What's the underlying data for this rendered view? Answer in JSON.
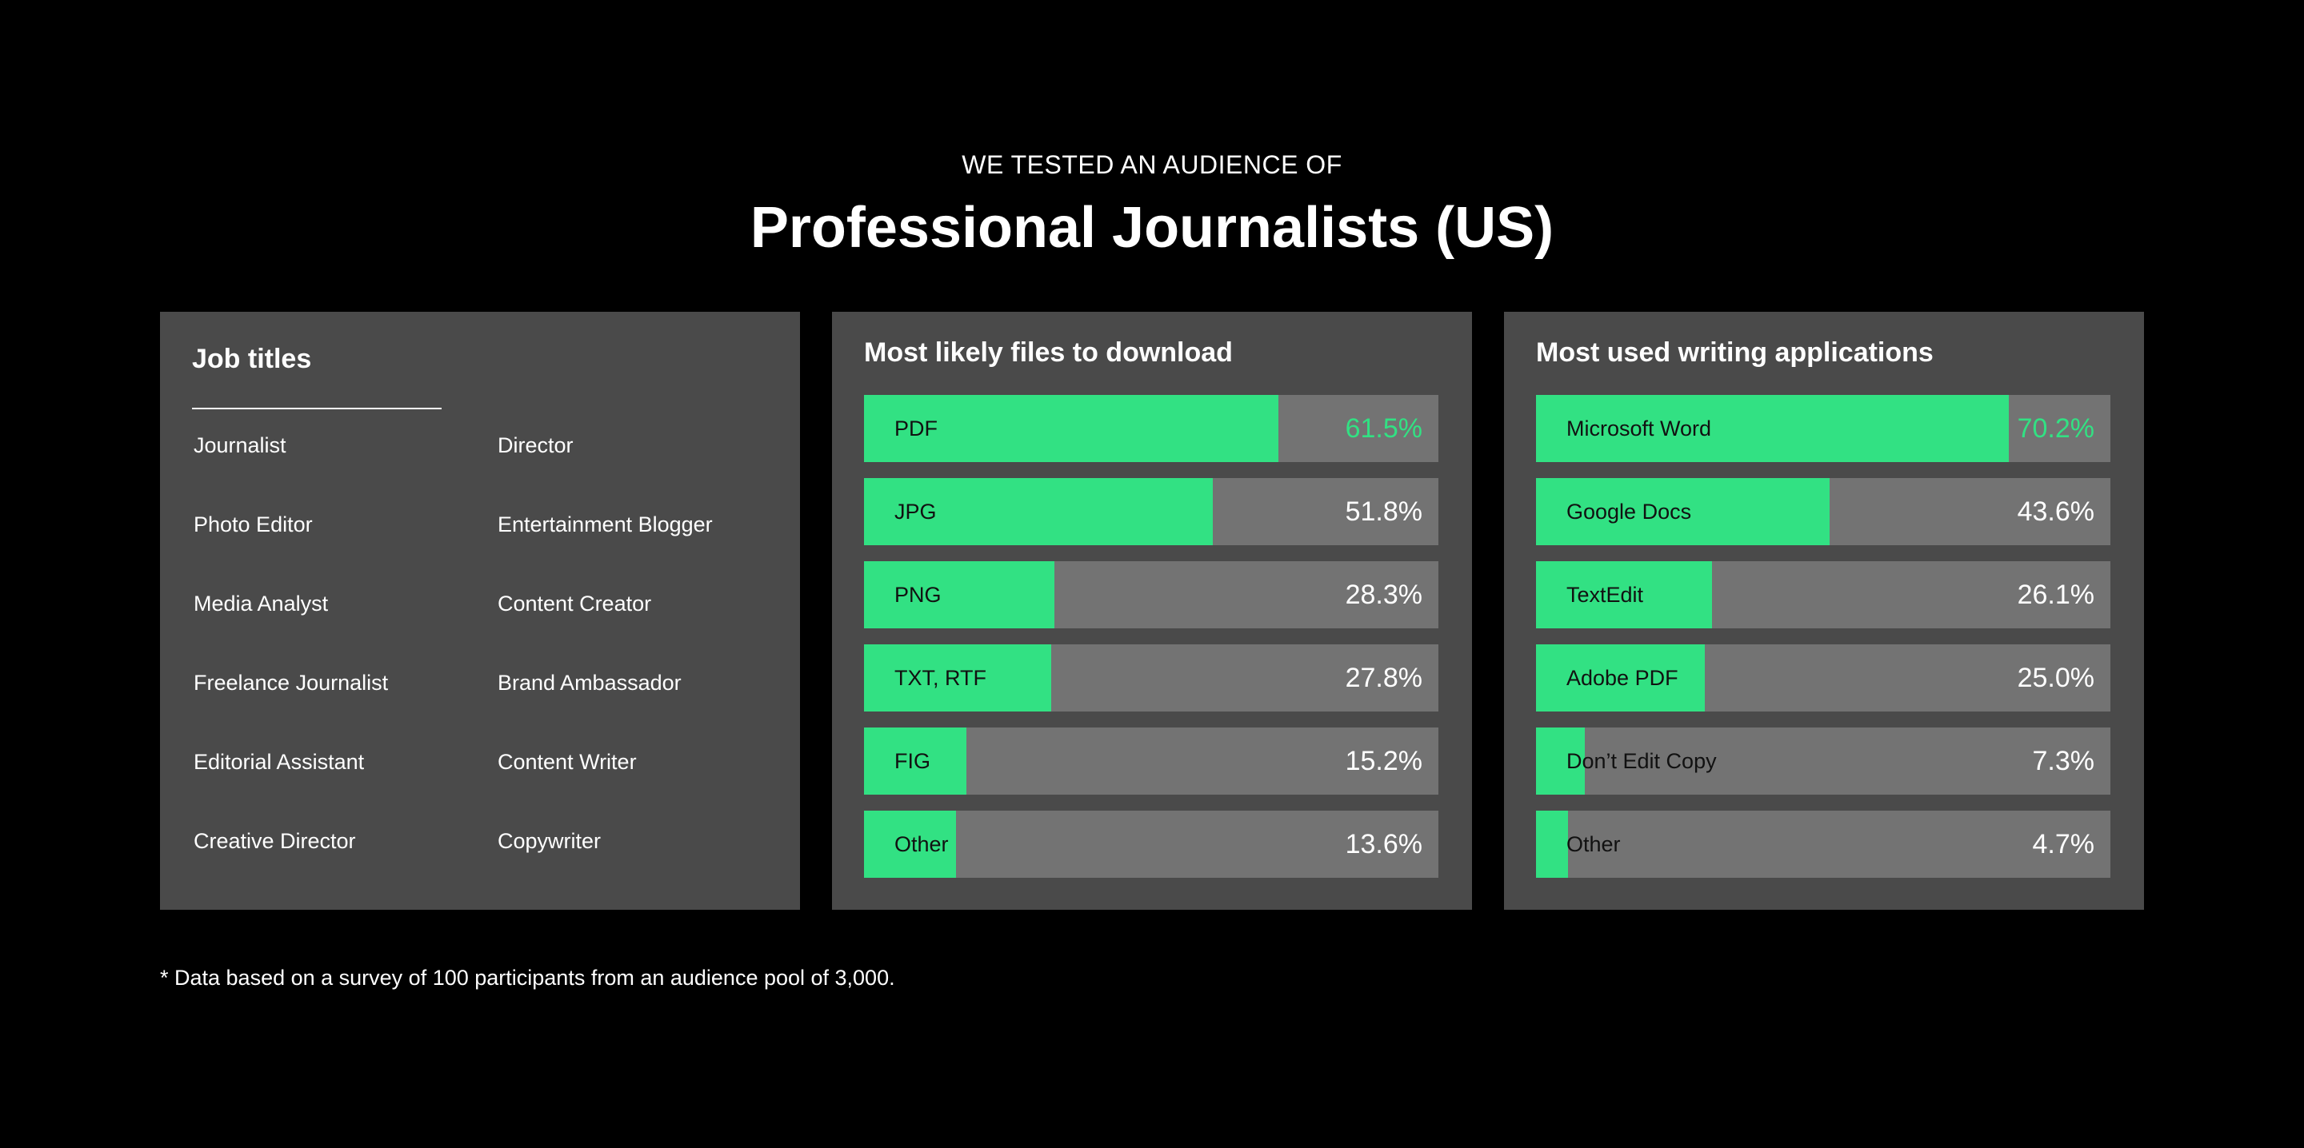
{
  "header": {
    "subtitle": "WE TESTED AN AUDIENCE OF",
    "title": "Professional Journalists (US)"
  },
  "jobs": {
    "title": "Job titles",
    "items": [
      "Journalist",
      "Director",
      "Photo Editor",
      "Entertainment Blogger",
      "Media Analyst",
      "Content Creator",
      "Freelance Journalist",
      "Brand Ambassador",
      "Editorial Assistant",
      "Content Writer",
      "Creative Director",
      "Copywriter"
    ]
  },
  "chart_data": [
    {
      "type": "bar",
      "orientation": "horizontal",
      "title": "Most likely files to download",
      "categories": [
        "PDF",
        "JPG",
        "PNG",
        "TXT, RTF",
        "FIG",
        "Other"
      ],
      "values": [
        61.5,
        51.8,
        28.3,
        27.8,
        15.2,
        13.6
      ],
      "value_labels": [
        "61.5%",
        "51.8%",
        "28.3%",
        "27.8%",
        "15.2%",
        "13.6%"
      ],
      "unit": "%",
      "xlim": [
        0,
        85
      ],
      "highlight_color": "#32e183",
      "track_color": "#737373"
    },
    {
      "type": "bar",
      "orientation": "horizontal",
      "title": "Most used writing applications",
      "categories": [
        "Microsoft Word",
        "Google Docs",
        "TextEdit",
        "Adobe PDF",
        "Don’t Edit Copy",
        "Other"
      ],
      "values": [
        70.2,
        43.6,
        26.1,
        25.0,
        7.3,
        4.7
      ],
      "value_labels": [
        "70.2%",
        "43.6%",
        "26.1%",
        "25.0%",
        "7.3%",
        "4.7%"
      ],
      "unit": "%",
      "highlight_color": "#32e183",
      "track_color": "#737373"
    }
  ],
  "footnote": "* Data based on a survey of 100 participants from an audience pool of 3,000.",
  "colors": {
    "background": "#000000",
    "panel": "#4a4a4a",
    "accent": "#32e183",
    "track": "#737373"
  }
}
